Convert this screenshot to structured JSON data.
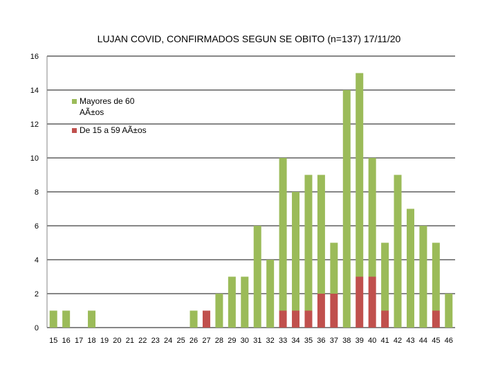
{
  "chart_data": {
    "type": "bar",
    "stacked": true,
    "title": "LUJAN COVID, CONFIRMADOS SEGUN SE OBITO (n=137) 17/11/20",
    "xlabel": "",
    "ylabel": "",
    "ylim": [
      0,
      16
    ],
    "yticks": [
      0,
      2,
      4,
      6,
      8,
      10,
      12,
      14,
      16
    ],
    "grid": true,
    "legend_position": "top-left",
    "categories": [
      "15",
      "16",
      "17",
      "18",
      "19",
      "20",
      "21",
      "22",
      "23",
      "24",
      "25",
      "26",
      "27",
      "28",
      "29",
      "30",
      "31",
      "32",
      "33",
      "34",
      "35",
      "36",
      "37",
      "38",
      "39",
      "40",
      "41",
      "42",
      "43",
      "44",
      "45",
      "46"
    ],
    "series": [
      {
        "name": "De 15 a 59 AÃ±os",
        "color": "#c0504d",
        "values": [
          0,
          0,
          0,
          0,
          0,
          0,
          0,
          0,
          0,
          0,
          0,
          0,
          1,
          0,
          0,
          0,
          0,
          0,
          1,
          1,
          1,
          2,
          2,
          0,
          3,
          3,
          1,
          0,
          0,
          0,
          1,
          0
        ]
      },
      {
        "name": "Mayores de 60 AÃ±os",
        "color": "#9bbb59",
        "values": [
          1,
          1,
          0,
          1,
          0,
          0,
          0,
          0,
          0,
          0,
          0,
          1,
          0,
          2,
          3,
          3,
          6,
          4,
          9,
          7,
          8,
          7,
          3,
          14,
          12,
          7,
          4,
          9,
          7,
          6,
          4,
          2
        ]
      }
    ],
    "legend": [
      {
        "lines": [
          "Mayores de 60",
          "AÃ±os"
        ],
        "color": "#9bbb59"
      },
      {
        "lines": [
          "De 15 a 59 AÃ±os"
        ],
        "color": "#c0504d"
      }
    ],
    "gridline_color": "#868686"
  }
}
